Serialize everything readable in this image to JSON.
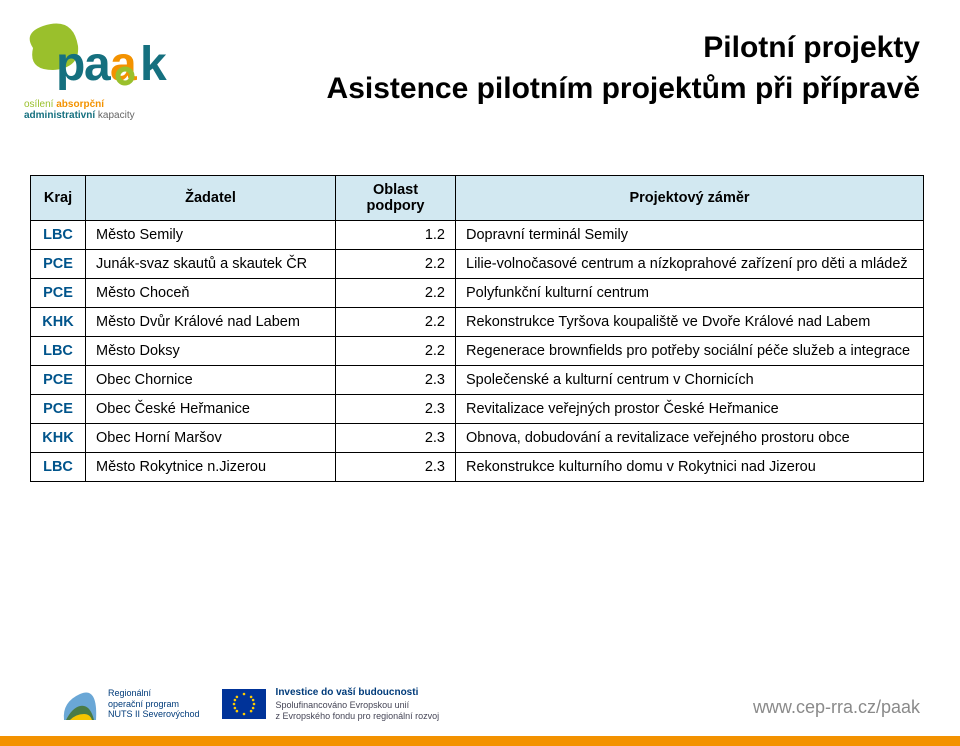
{
  "titles": {
    "line1": "Pilotní projekty",
    "line2": "Asistence pilotním projektům při přípravě"
  },
  "logo_tagline": {
    "l1": "osílení",
    "l2": "absorpční",
    "l3": "administrativní",
    "l4": "kapacity"
  },
  "table": {
    "headers": {
      "kraj": "Kraj",
      "zadatel": "Žadatel",
      "oblast": "Oblast podpory",
      "projekt": "Projektový záměr"
    },
    "rows": [
      {
        "kraj": "LBC",
        "zadatel": "Město Semily",
        "oblast": "1.2",
        "projekt": "Dopravní terminál Semily"
      },
      {
        "kraj": "PCE",
        "zadatel": "Junák-svaz skautů a skautek ČR",
        "oblast": "2.2",
        "projekt": "Lilie-volnočasové centrum a nízkoprahové zařízení pro děti a mládež"
      },
      {
        "kraj": "PCE",
        "zadatel": "Město Choceň",
        "oblast": "2.2",
        "projekt": "Polyfunkční kulturní centrum"
      },
      {
        "kraj": "KHK",
        "zadatel": "Město Dvůr Králové nad Labem",
        "oblast": "2.2",
        "projekt": "Rekonstrukce Tyršova koupaliště ve Dvoře Králové nad Labem"
      },
      {
        "kraj": "LBC",
        "zadatel": "Město Doksy",
        "oblast": "2.2",
        "projekt": "Regenerace brownfields pro potřeby sociální péče služeb a integrace"
      },
      {
        "kraj": "PCE",
        "zadatel": "Obec Chornice",
        "oblast": "2.3",
        "projekt": "Společenské a kulturní centrum v Chornicích"
      },
      {
        "kraj": "PCE",
        "zadatel": "Obec České Heřmanice",
        "oblast": "2.3",
        "projekt": "Revitalizace veřejných prostor České Heřmanice"
      },
      {
        "kraj": "KHK",
        "zadatel": "Obec Horní Maršov",
        "oblast": "2.3",
        "projekt": "Obnova, dobudování a revitalizace veřejného prostoru obce"
      },
      {
        "kraj": "LBC",
        "zadatel": "Město Rokytnice n.Jizerou",
        "oblast": "2.3",
        "projekt": "Rekonstrukce kulturního domu v Rokytnici nad Jizerou"
      }
    ]
  },
  "footer": {
    "rop_label": "Regionální\noperační program\nNUTS II Severovýchod",
    "eu_heading": "Investice do vaší budoucnosti",
    "eu_sub1": "Spolufinancováno Evropskou unií",
    "eu_sub2": "z Evropského fondu pro regionální rozvoj",
    "url": "www.cep-rra.cz/paak"
  },
  "colors": {
    "header_row_bg": "#d2e8f1",
    "kraj_text": "#00548b",
    "footer_bar": "#f39200",
    "url_text": "#8a8a8a",
    "logo_green": "#9ac02c",
    "logo_orange": "#f39200",
    "logo_blue": "#15707f"
  }
}
